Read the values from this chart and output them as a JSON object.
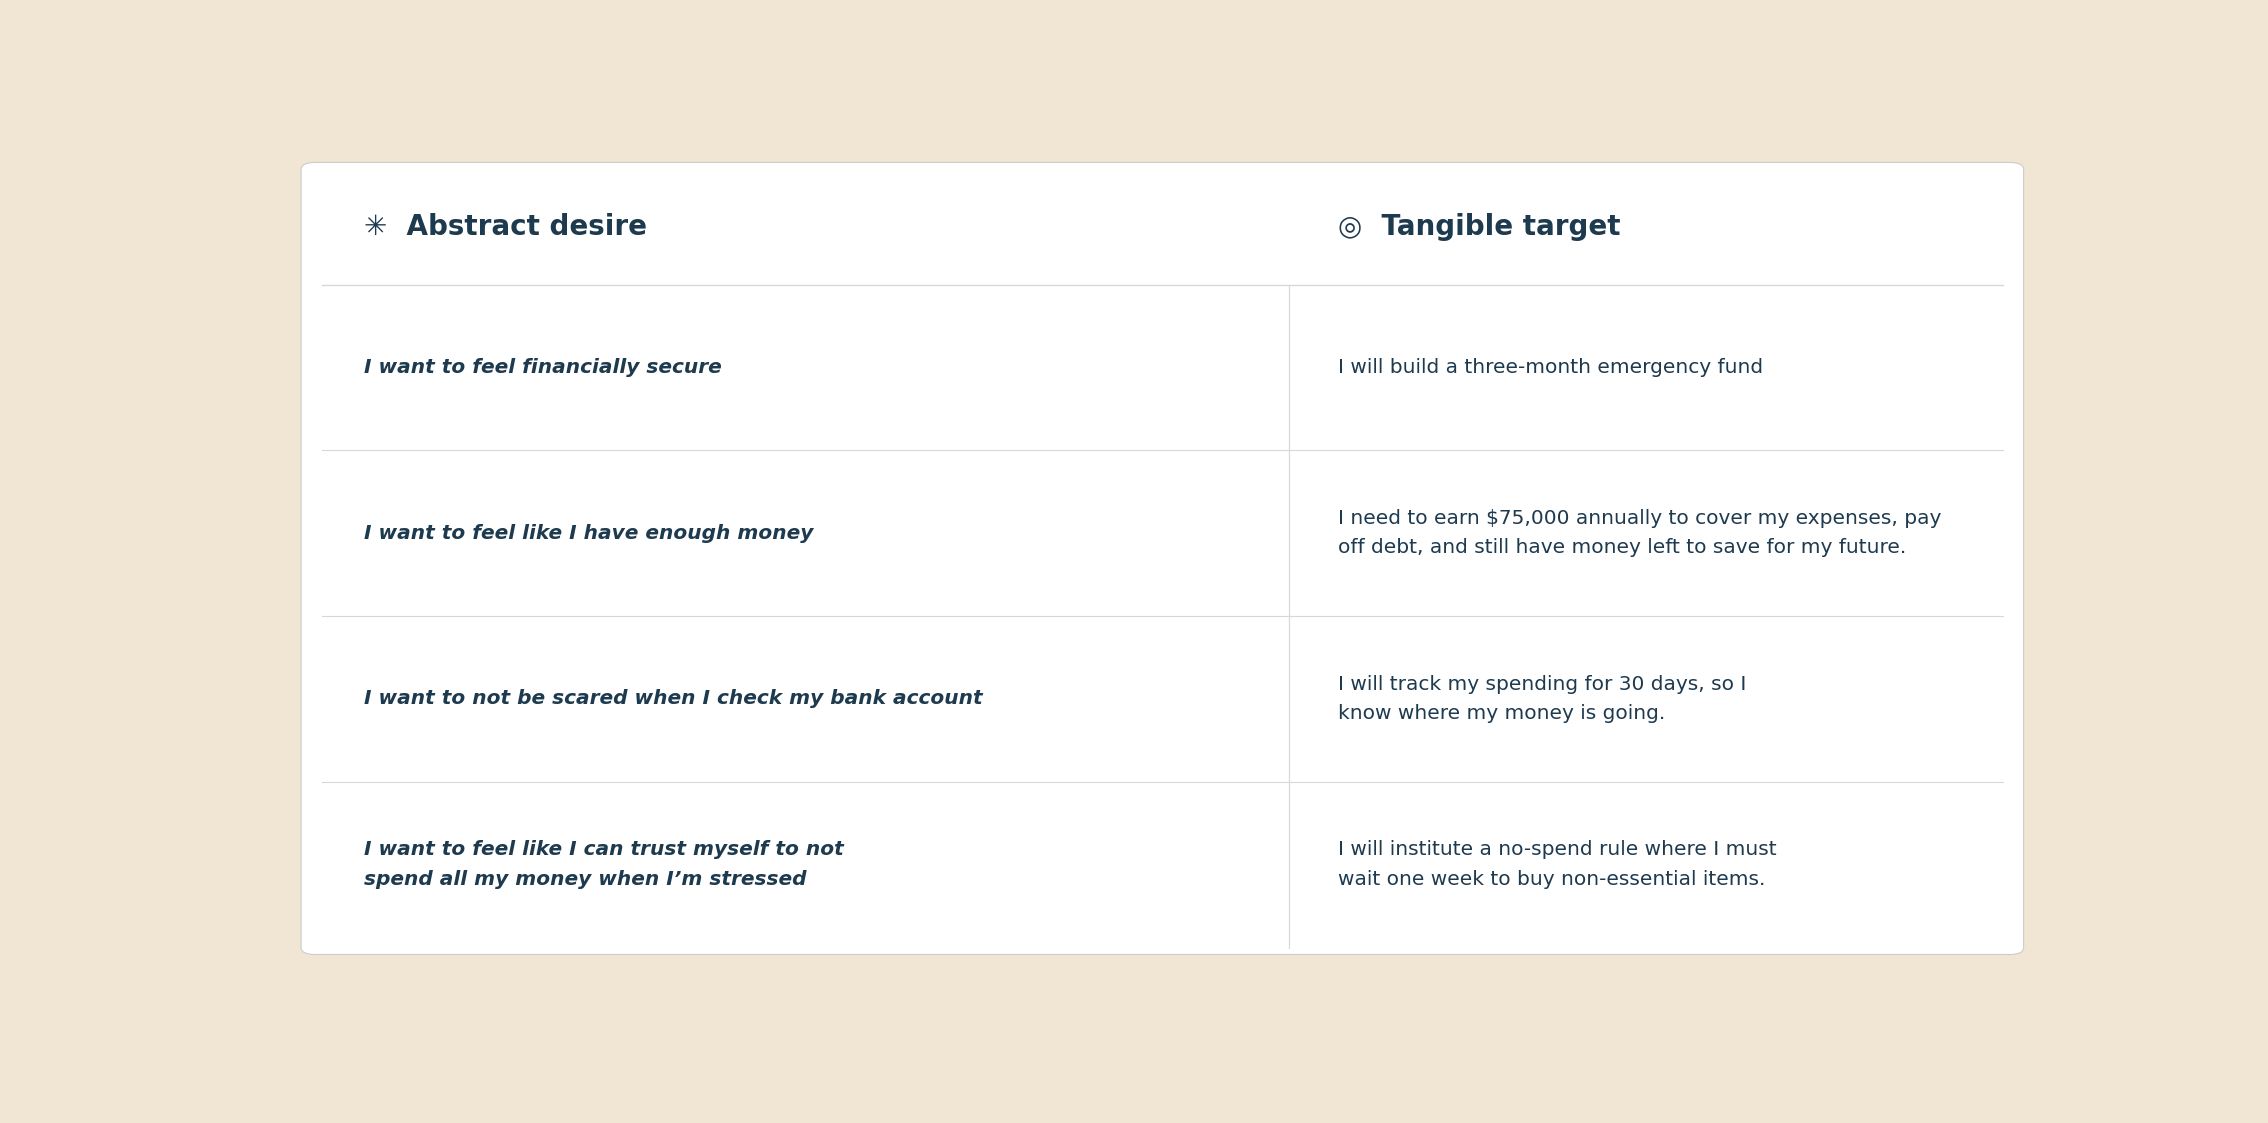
{
  "bg_color": "#f0e6d3",
  "card_color": "#ffffff",
  "text_color": "#1e3a4f",
  "divider_color": "#d8d8d8",
  "header_left_icon": "✳",
  "header_left": "Abstract desire",
  "header_right_icon": "◎",
  "header_right": "Tangible target",
  "header_fontsize": 20,
  "row_fontsize": 14.5,
  "rows": [
    {
      "left": "I want to feel financially secure",
      "right": "I will build a three-month emergency fund"
    },
    {
      "left": "I want to feel like I have enough money",
      "right": "I need to earn $75,000 annually to cover my expenses, pay\noff debt, and still have money left to save for my future."
    },
    {
      "left": "I want to not be scared when I check my bank account",
      "right": "I will track my spending for 30 days, so I\nknow where my money is going."
    },
    {
      "left": "I want to feel like I can trust myself to not\nspend all my money when I’m stressed",
      "right": "I will institute a no-spend rule where I must\nwait one week to buy non-essential items."
    }
  ]
}
